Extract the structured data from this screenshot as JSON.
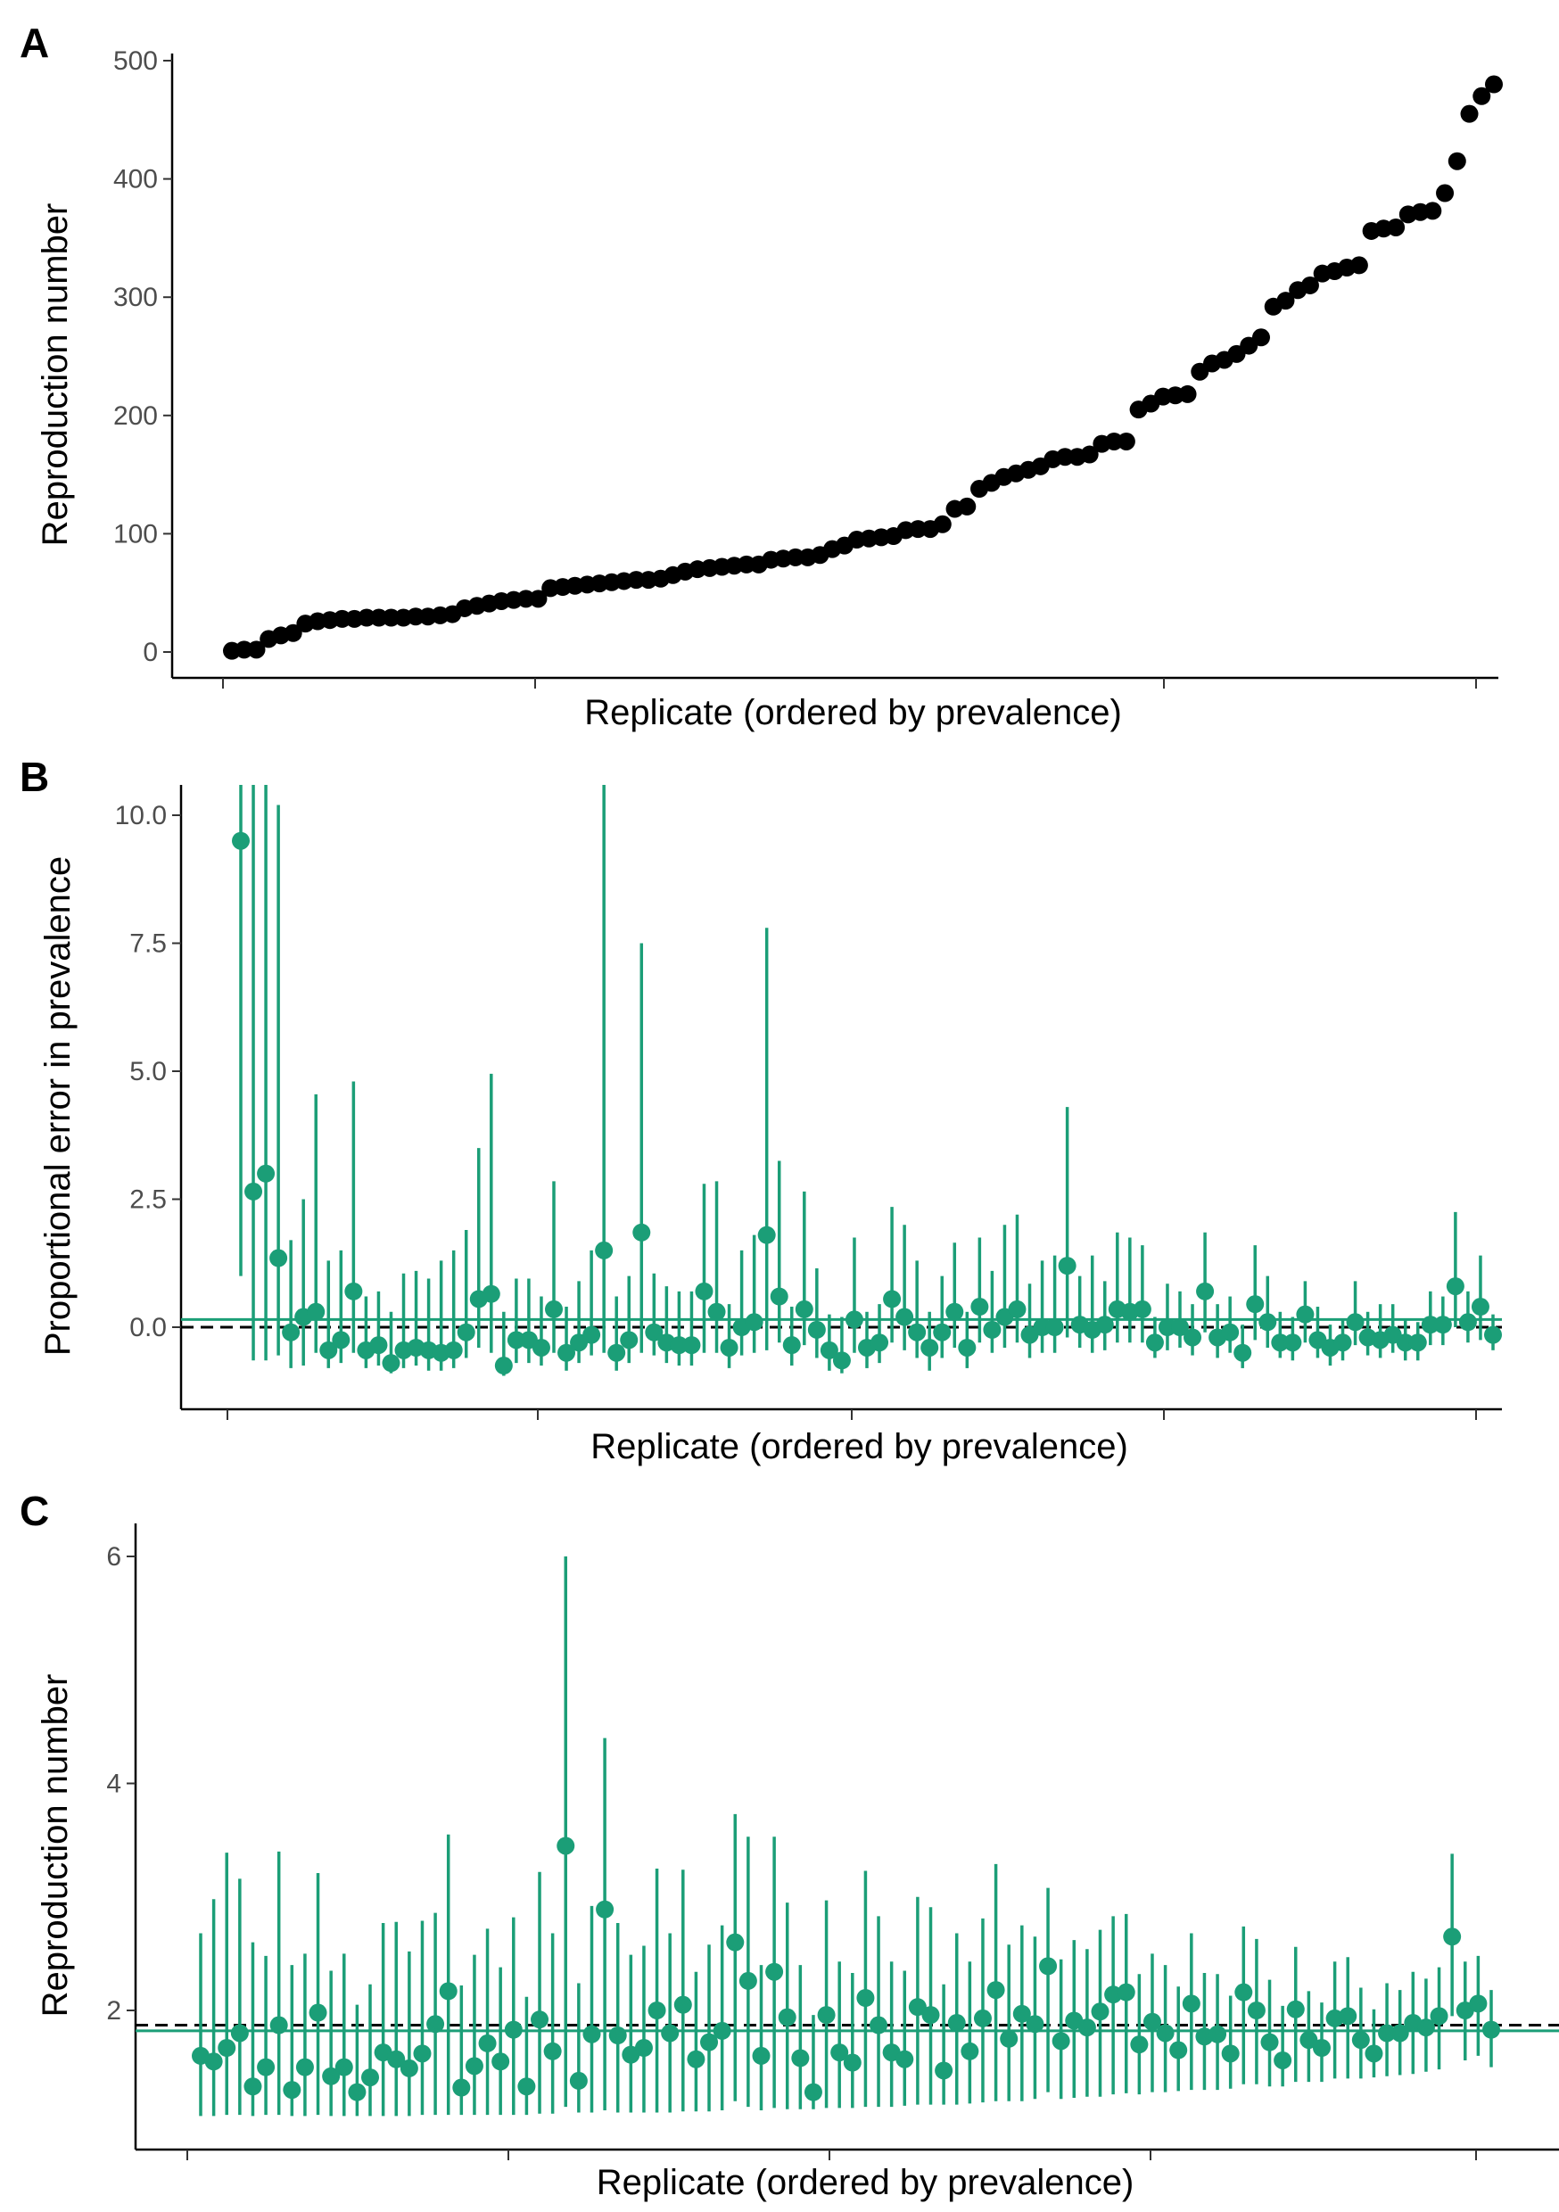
{
  "chart_data": [
    {
      "panel": "A",
      "type": "scatter",
      "xlabel": "Replicate (ordered by prevalence)",
      "ylabel": "Reproduction number",
      "yticks": [
        "0",
        "100",
        "200",
        "300",
        "400",
        "500"
      ],
      "ylim": [
        -10,
        500
      ],
      "grid": false,
      "point_color": "#000000",
      "y": [
        1,
        2,
        2,
        11,
        14,
        16,
        24,
        26,
        27,
        28,
        28,
        29,
        29,
        29,
        29,
        30,
        30,
        31,
        32,
        37,
        39,
        41,
        43,
        44,
        45,
        45,
        54,
        55,
        56,
        57,
        58,
        59,
        60,
        61,
        61,
        62,
        65,
        68,
        70,
        71,
        72,
        73,
        74,
        74,
        78,
        79,
        80,
        80,
        82,
        87,
        90,
        95,
        96,
        97,
        98,
        103,
        104,
        104,
        108,
        121,
        123,
        138,
        143,
        148,
        151,
        154,
        157,
        163,
        165,
        165,
        167,
        176,
        178,
        178,
        205,
        210,
        216,
        217,
        218,
        237,
        244,
        247,
        252,
        259,
        266,
        292,
        297,
        306,
        310,
        320,
        322,
        325,
        327,
        356,
        358,
        359,
        370,
        372,
        373,
        388,
        415,
        455,
        470,
        480
      ]
    },
    {
      "panel": "B",
      "type": "scatter",
      "xlabel": "Replicate (ordered by prevalence)",
      "ylabel": "Proportional error in prevalence",
      "yticks": [
        "0.0",
        "2.5",
        "5.0",
        "7.5",
        "10.0"
      ],
      "ylim": [
        -1.5,
        10.5
      ],
      "grid": false,
      "series_color": "#1b9e77",
      "reference_dashed": 0.0,
      "mean_line": 0.15,
      "y": [
        9.5,
        2.65,
        3.0,
        1.35,
        -0.1,
        0.2,
        0.3,
        -0.45,
        -0.25,
        0.7,
        -0.45,
        -0.35,
        -0.7,
        -0.45,
        -0.4,
        -0.45,
        -0.5,
        -0.45,
        -0.1,
        0.55,
        0.65,
        -0.75,
        -0.25,
        -0.25,
        -0.4,
        0.35,
        -0.5,
        -0.3,
        -0.15,
        1.5,
        -0.5,
        -0.25,
        1.85,
        -0.1,
        -0.3,
        -0.35,
        -0.35,
        0.7,
        0.3,
        -0.4,
        0.0,
        0.1,
        1.8,
        0.6,
        -0.35,
        0.35,
        -0.05,
        -0.45,
        -0.65,
        0.15,
        -0.4,
        -0.3,
        0.55,
        0.2,
        -0.1,
        -0.4,
        -0.1,
        0.3,
        -0.4,
        0.4,
        -0.05,
        0.2,
        0.35,
        -0.15,
        0.0,
        0.0,
        1.2,
        0.05,
        -0.05,
        0.05,
        0.35,
        0.3,
        0.35,
        -0.3,
        0.0,
        0.0,
        -0.2,
        0.7,
        -0.2,
        -0.1,
        -0.5,
        0.45,
        0.1,
        -0.3,
        -0.3,
        0.25,
        -0.25,
        -0.4,
        -0.3,
        0.1,
        -0.2,
        -0.25,
        -0.15,
        -0.3,
        -0.3,
        0.05,
        0.05,
        0.8,
        0.1,
        0.4,
        -0.15
      ],
      "lower": [
        1.0,
        -0.65,
        -0.65,
        -0.55,
        -0.8,
        -0.75,
        -0.5,
        -0.8,
        -0.7,
        -0.5,
        -0.8,
        -0.75,
        -0.9,
        -0.8,
        -0.75,
        -0.85,
        -0.85,
        -0.8,
        -0.6,
        -0.4,
        -0.5,
        -0.95,
        -0.7,
        -0.7,
        -0.75,
        -0.5,
        -0.85,
        -0.7,
        -0.55,
        -0.5,
        -0.85,
        -0.7,
        -0.5,
        -0.55,
        -0.7,
        -0.75,
        -0.75,
        -0.5,
        -0.5,
        -0.8,
        -0.55,
        -0.5,
        -0.45,
        -0.3,
        -0.75,
        -0.35,
        -0.6,
        -0.85,
        -0.9,
        -0.5,
        -0.8,
        -0.7,
        -0.3,
        -0.45,
        -0.6,
        -0.85,
        -0.6,
        -0.4,
        -0.8,
        -0.3,
        -0.5,
        -0.4,
        -0.3,
        -0.6,
        -0.5,
        -0.5,
        -0.2,
        -0.4,
        -0.5,
        -0.45,
        -0.3,
        -0.3,
        -0.3,
        -0.6,
        -0.45,
        -0.4,
        -0.55,
        -0.1,
        -0.6,
        -0.5,
        -0.8,
        -0.25,
        -0.4,
        -0.6,
        -0.65,
        -0.3,
        -0.6,
        -0.75,
        -0.65,
        -0.35,
        -0.55,
        -0.6,
        -0.5,
        -0.65,
        -0.65,
        -0.35,
        -0.35,
        0.0,
        -0.3,
        -0.25,
        -0.45
      ],
      "upper": [
        10.6,
        10.6,
        10.6,
        10.2,
        1.7,
        2.5,
        4.55,
        1.3,
        1.5,
        4.8,
        0.6,
        0.7,
        0.3,
        1.05,
        1.1,
        0.95,
        1.3,
        1.5,
        1.9,
        3.5,
        4.95,
        0.3,
        0.95,
        0.95,
        0.6,
        2.85,
        0.4,
        0.9,
        1.5,
        10.6,
        0.6,
        1.0,
        7.5,
        1.05,
        0.8,
        0.7,
        0.7,
        2.8,
        2.85,
        0.45,
        1.5,
        1.8,
        7.8,
        3.25,
        0.4,
        2.65,
        1.15,
        0.25,
        0.2,
        1.75,
        0.3,
        0.45,
        2.35,
        2.0,
        1.3,
        0.3,
        1.0,
        1.65,
        0.3,
        1.75,
        1.1,
        2.0,
        2.2,
        0.85,
        1.3,
        1.4,
        4.3,
        1.0,
        1.4,
        0.9,
        1.85,
        1.75,
        1.6,
        0.2,
        0.85,
        0.7,
        0.45,
        1.85,
        0.45,
        0.6,
        0.05,
        1.6,
        1.0,
        0.3,
        0.2,
        0.9,
        0.4,
        0.05,
        0.15,
        0.9,
        0.3,
        0.45,
        0.45,
        0.15,
        0.1,
        0.7,
        0.6,
        2.25,
        0.7,
        1.4,
        0.25
      ]
    },
    {
      "panel": "C",
      "type": "scatter",
      "xlabel": "Replicate (ordered by prevalence)",
      "ylabel": "Reproduction number",
      "yticks": [
        "2",
        "4",
        "6"
      ],
      "ylim": [
        0.9,
        6.2
      ],
      "grid": false,
      "series_color": "#1b9e77",
      "reference_dashed": 1.87,
      "mean_line": 1.82,
      "y": [
        1.6,
        1.55,
        1.67,
        1.8,
        1.33,
        1.5,
        1.87,
        1.3,
        1.5,
        1.98,
        1.42,
        1.5,
        1.28,
        1.41,
        1.63,
        1.57,
        1.49,
        1.62,
        1.88,
        2.17,
        1.32,
        1.51,
        1.71,
        1.55,
        1.83,
        1.33,
        1.92,
        1.64,
        3.45,
        1.38,
        1.79,
        2.89,
        1.78,
        1.61,
        1.67,
        2.0,
        1.8,
        2.05,
        1.57,
        1.72,
        1.82,
        2.6,
        2.26,
        1.6,
        2.34,
        1.94,
        1.58,
        1.28,
        1.96,
        1.63,
        1.54,
        2.11,
        1.87,
        1.63,
        1.57,
        2.03,
        1.96,
        1.47,
        1.89,
        1.64,
        1.93,
        2.18,
        1.75,
        1.97,
        1.88,
        2.39,
        1.73,
        1.91,
        1.85,
        1.99,
        2.14,
        2.16,
        1.7,
        1.9,
        1.8,
        1.65,
        2.06,
        1.77,
        1.79,
        1.62,
        2.16,
        2.0,
        1.72,
        1.56,
        2.01,
        1.74,
        1.67,
        1.93,
        1.95,
        1.74,
        1.62,
        1.8,
        1.8,
        1.89,
        1.85,
        1.95,
        2.65,
        2.0,
        2.06,
        1.83
      ],
      "lower": [
        1.07,
        1.07,
        1.08,
        1.08,
        1.07,
        1.08,
        1.08,
        1.07,
        1.07,
        1.08,
        1.07,
        1.07,
        1.07,
        1.07,
        1.07,
        1.07,
        1.07,
        1.08,
        1.08,
        1.08,
        1.08,
        1.08,
        1.08,
        1.08,
        1.08,
        1.08,
        1.09,
        1.09,
        1.15,
        1.1,
        1.1,
        1.12,
        1.1,
        1.1,
        1.1,
        1.1,
        1.1,
        1.11,
        1.11,
        1.11,
        1.12,
        1.2,
        1.15,
        1.12,
        1.14,
        1.13,
        1.13,
        1.13,
        1.14,
        1.14,
        1.14,
        1.15,
        1.15,
        1.15,
        1.16,
        1.17,
        1.17,
        1.17,
        1.17,
        1.18,
        1.19,
        1.2,
        1.2,
        1.2,
        1.22,
        1.28,
        1.22,
        1.23,
        1.24,
        1.24,
        1.26,
        1.27,
        1.26,
        1.28,
        1.28,
        1.29,
        1.3,
        1.3,
        1.3,
        1.31,
        1.35,
        1.35,
        1.33,
        1.33,
        1.37,
        1.37,
        1.37,
        1.4,
        1.4,
        1.4,
        1.41,
        1.42,
        1.43,
        1.44,
        1.46,
        1.48,
        1.95,
        1.56,
        1.6,
        1.5
      ],
      "upper": [
        2.68,
        2.98,
        3.39,
        3.16,
        2.6,
        2.48,
        3.4,
        2.4,
        2.5,
        3.21,
        2.35,
        2.5,
        2.05,
        2.23,
        2.77,
        2.78,
        2.52,
        2.79,
        2.86,
        3.55,
        2.22,
        2.49,
        2.72,
        2.38,
        2.82,
        2.12,
        3.22,
        2.68,
        6.0,
        2.24,
        2.92,
        4.4,
        2.77,
        2.49,
        2.57,
        3.25,
        2.68,
        3.24,
        2.34,
        2.58,
        2.75,
        3.73,
        3.53,
        2.4,
        3.53,
        2.95,
        2.4,
        1.96,
        2.97,
        2.43,
        2.33,
        3.23,
        2.83,
        2.43,
        2.35,
        3.0,
        2.91,
        2.23,
        2.68,
        2.43,
        2.81,
        3.29,
        2.58,
        2.75,
        2.65,
        3.08,
        2.45,
        2.62,
        2.54,
        2.71,
        2.83,
        2.85,
        2.32,
        2.5,
        2.4,
        2.21,
        2.68,
        2.33,
        2.32,
        2.13,
        2.74,
        2.63,
        2.27,
        2.04,
        2.56,
        2.17,
        2.07,
        2.43,
        2.47,
        2.2,
        2.01,
        2.24,
        2.18,
        2.34,
        2.28,
        2.38,
        3.38,
        2.43,
        2.48,
        2.18
      ]
    }
  ]
}
